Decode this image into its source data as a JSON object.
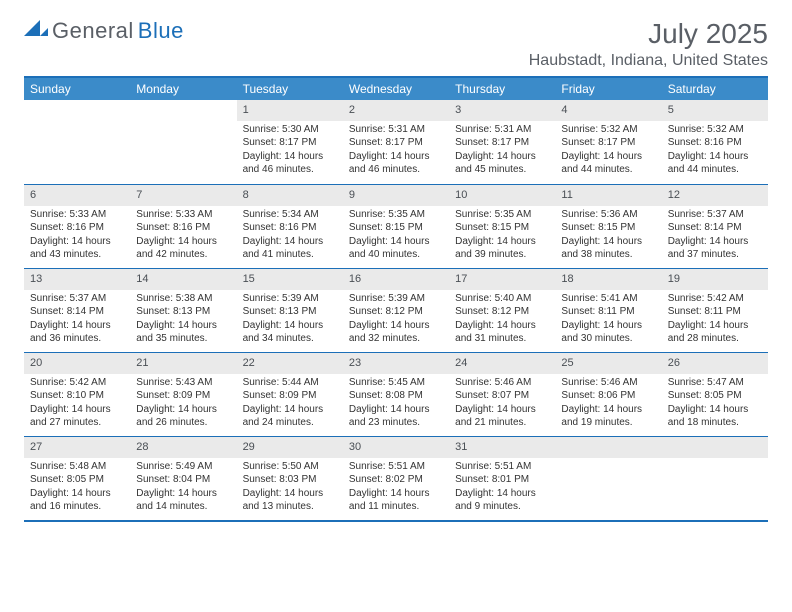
{
  "logo": {
    "text1": "General",
    "text2": "Blue"
  },
  "title": "July 2025",
  "location": "Haubstadt, Indiana, United States",
  "colors": {
    "accent": "#1c6fb8",
    "header_bg": "#3b8bc9",
    "daynum_bg": "#eaeaea",
    "text_muted": "#5a5f66"
  },
  "weekdays": [
    "Sunday",
    "Monday",
    "Tuesday",
    "Wednesday",
    "Thursday",
    "Friday",
    "Saturday"
  ],
  "weeks": [
    [
      null,
      null,
      {
        "day": "1",
        "sunrise": "Sunrise: 5:30 AM",
        "sunset": "Sunset: 8:17 PM",
        "daylight1": "Daylight: 14 hours",
        "daylight2": "and 46 minutes."
      },
      {
        "day": "2",
        "sunrise": "Sunrise: 5:31 AM",
        "sunset": "Sunset: 8:17 PM",
        "daylight1": "Daylight: 14 hours",
        "daylight2": "and 46 minutes."
      },
      {
        "day": "3",
        "sunrise": "Sunrise: 5:31 AM",
        "sunset": "Sunset: 8:17 PM",
        "daylight1": "Daylight: 14 hours",
        "daylight2": "and 45 minutes."
      },
      {
        "day": "4",
        "sunrise": "Sunrise: 5:32 AM",
        "sunset": "Sunset: 8:17 PM",
        "daylight1": "Daylight: 14 hours",
        "daylight2": "and 44 minutes."
      },
      {
        "day": "5",
        "sunrise": "Sunrise: 5:32 AM",
        "sunset": "Sunset: 8:16 PM",
        "daylight1": "Daylight: 14 hours",
        "daylight2": "and 44 minutes."
      }
    ],
    [
      {
        "day": "6",
        "sunrise": "Sunrise: 5:33 AM",
        "sunset": "Sunset: 8:16 PM",
        "daylight1": "Daylight: 14 hours",
        "daylight2": "and 43 minutes."
      },
      {
        "day": "7",
        "sunrise": "Sunrise: 5:33 AM",
        "sunset": "Sunset: 8:16 PM",
        "daylight1": "Daylight: 14 hours",
        "daylight2": "and 42 minutes."
      },
      {
        "day": "8",
        "sunrise": "Sunrise: 5:34 AM",
        "sunset": "Sunset: 8:16 PM",
        "daylight1": "Daylight: 14 hours",
        "daylight2": "and 41 minutes."
      },
      {
        "day": "9",
        "sunrise": "Sunrise: 5:35 AM",
        "sunset": "Sunset: 8:15 PM",
        "daylight1": "Daylight: 14 hours",
        "daylight2": "and 40 minutes."
      },
      {
        "day": "10",
        "sunrise": "Sunrise: 5:35 AM",
        "sunset": "Sunset: 8:15 PM",
        "daylight1": "Daylight: 14 hours",
        "daylight2": "and 39 minutes."
      },
      {
        "day": "11",
        "sunrise": "Sunrise: 5:36 AM",
        "sunset": "Sunset: 8:15 PM",
        "daylight1": "Daylight: 14 hours",
        "daylight2": "and 38 minutes."
      },
      {
        "day": "12",
        "sunrise": "Sunrise: 5:37 AM",
        "sunset": "Sunset: 8:14 PM",
        "daylight1": "Daylight: 14 hours",
        "daylight2": "and 37 minutes."
      }
    ],
    [
      {
        "day": "13",
        "sunrise": "Sunrise: 5:37 AM",
        "sunset": "Sunset: 8:14 PM",
        "daylight1": "Daylight: 14 hours",
        "daylight2": "and 36 minutes."
      },
      {
        "day": "14",
        "sunrise": "Sunrise: 5:38 AM",
        "sunset": "Sunset: 8:13 PM",
        "daylight1": "Daylight: 14 hours",
        "daylight2": "and 35 minutes."
      },
      {
        "day": "15",
        "sunrise": "Sunrise: 5:39 AM",
        "sunset": "Sunset: 8:13 PM",
        "daylight1": "Daylight: 14 hours",
        "daylight2": "and 34 minutes."
      },
      {
        "day": "16",
        "sunrise": "Sunrise: 5:39 AM",
        "sunset": "Sunset: 8:12 PM",
        "daylight1": "Daylight: 14 hours",
        "daylight2": "and 32 minutes."
      },
      {
        "day": "17",
        "sunrise": "Sunrise: 5:40 AM",
        "sunset": "Sunset: 8:12 PM",
        "daylight1": "Daylight: 14 hours",
        "daylight2": "and 31 minutes."
      },
      {
        "day": "18",
        "sunrise": "Sunrise: 5:41 AM",
        "sunset": "Sunset: 8:11 PM",
        "daylight1": "Daylight: 14 hours",
        "daylight2": "and 30 minutes."
      },
      {
        "day": "19",
        "sunrise": "Sunrise: 5:42 AM",
        "sunset": "Sunset: 8:11 PM",
        "daylight1": "Daylight: 14 hours",
        "daylight2": "and 28 minutes."
      }
    ],
    [
      {
        "day": "20",
        "sunrise": "Sunrise: 5:42 AM",
        "sunset": "Sunset: 8:10 PM",
        "daylight1": "Daylight: 14 hours",
        "daylight2": "and 27 minutes."
      },
      {
        "day": "21",
        "sunrise": "Sunrise: 5:43 AM",
        "sunset": "Sunset: 8:09 PM",
        "daylight1": "Daylight: 14 hours",
        "daylight2": "and 26 minutes."
      },
      {
        "day": "22",
        "sunrise": "Sunrise: 5:44 AM",
        "sunset": "Sunset: 8:09 PM",
        "daylight1": "Daylight: 14 hours",
        "daylight2": "and 24 minutes."
      },
      {
        "day": "23",
        "sunrise": "Sunrise: 5:45 AM",
        "sunset": "Sunset: 8:08 PM",
        "daylight1": "Daylight: 14 hours",
        "daylight2": "and 23 minutes."
      },
      {
        "day": "24",
        "sunrise": "Sunrise: 5:46 AM",
        "sunset": "Sunset: 8:07 PM",
        "daylight1": "Daylight: 14 hours",
        "daylight2": "and 21 minutes."
      },
      {
        "day": "25",
        "sunrise": "Sunrise: 5:46 AM",
        "sunset": "Sunset: 8:06 PM",
        "daylight1": "Daylight: 14 hours",
        "daylight2": "and 19 minutes."
      },
      {
        "day": "26",
        "sunrise": "Sunrise: 5:47 AM",
        "sunset": "Sunset: 8:05 PM",
        "daylight1": "Daylight: 14 hours",
        "daylight2": "and 18 minutes."
      }
    ],
    [
      {
        "day": "27",
        "sunrise": "Sunrise: 5:48 AM",
        "sunset": "Sunset: 8:05 PM",
        "daylight1": "Daylight: 14 hours",
        "daylight2": "and 16 minutes."
      },
      {
        "day": "28",
        "sunrise": "Sunrise: 5:49 AM",
        "sunset": "Sunset: 8:04 PM",
        "daylight1": "Daylight: 14 hours",
        "daylight2": "and 14 minutes."
      },
      {
        "day": "29",
        "sunrise": "Sunrise: 5:50 AM",
        "sunset": "Sunset: 8:03 PM",
        "daylight1": "Daylight: 14 hours",
        "daylight2": "and 13 minutes."
      },
      {
        "day": "30",
        "sunrise": "Sunrise: 5:51 AM",
        "sunset": "Sunset: 8:02 PM",
        "daylight1": "Daylight: 14 hours",
        "daylight2": "and 11 minutes."
      },
      {
        "day": "31",
        "sunrise": "Sunrise: 5:51 AM",
        "sunset": "Sunset: 8:01 PM",
        "daylight1": "Daylight: 14 hours",
        "daylight2": "and 9 minutes."
      },
      null,
      null
    ]
  ]
}
